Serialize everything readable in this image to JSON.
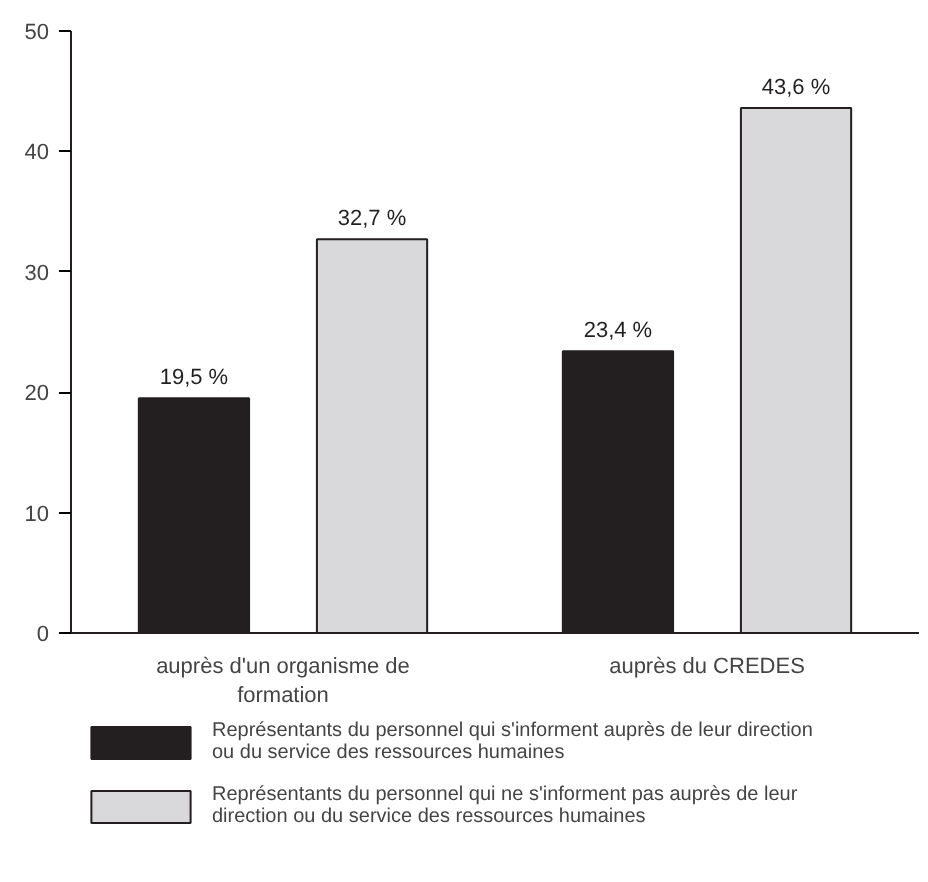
{
  "chart_data": {
    "type": "bar",
    "categories": [
      "auprès d'un organisme de formation",
      "auprès du CREDES"
    ],
    "series": [
      {
        "name": "Représentants du personnel qui s'informent auprès de leur direction ou du service des ressources humaines",
        "color": "#231f20",
        "values": [
          19.5,
          23.4
        ],
        "value_labels": [
          "19,5 %",
          "23,4 %"
        ]
      },
      {
        "name": "Représentants du personnel qui ne s'informent pas auprès de leur direction ou du service des ressources humaines",
        "color": "#d9d9db",
        "values": [
          32.7,
          43.6
        ],
        "value_labels": [
          "32,7 %",
          "43,6 %"
        ]
      }
    ],
    "ylim": [
      0,
      50
    ],
    "yticks": [
      0,
      10,
      20,
      30,
      40,
      50
    ],
    "grid": false,
    "legend": "bottom"
  }
}
